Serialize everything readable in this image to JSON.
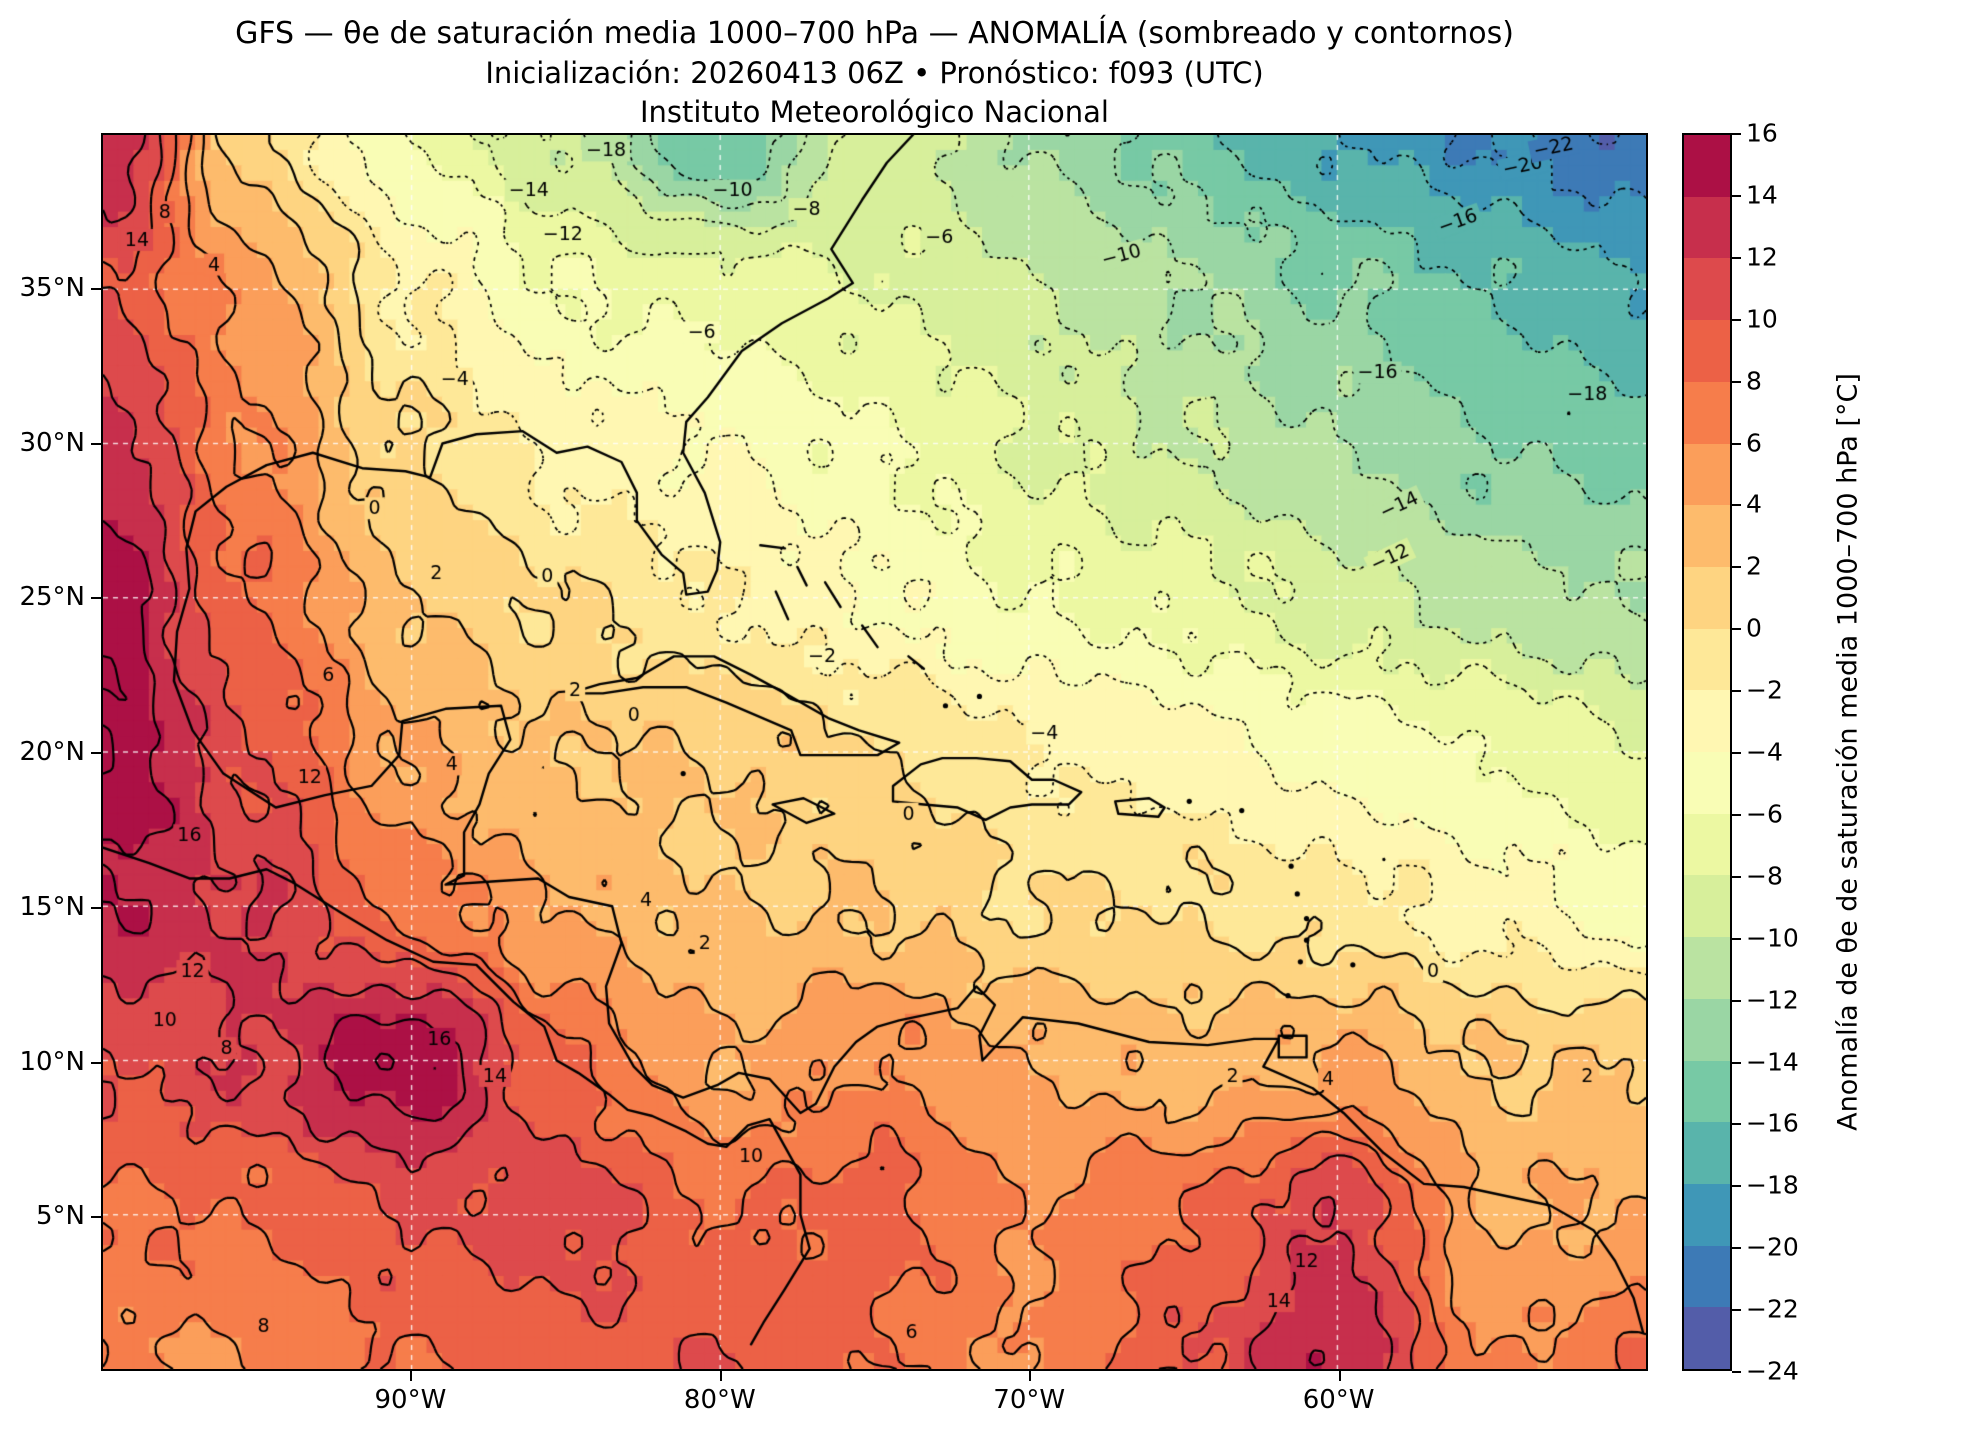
{
  "title": {
    "line1": "GFS — θe de saturación media 1000–700 hPa — ANOMALÍA (sombreado y contornos)",
    "line2": "Inicialización: 20260413 06Z   •   Pronóstico: f093 (UTC)",
    "line3": "Instituto Meteorológico Nacional"
  },
  "map": {
    "x_ticks": [
      {
        "label": "90°W",
        "lon": -90
      },
      {
        "label": "80°W",
        "lon": -80
      },
      {
        "label": "70°W",
        "lon": -70
      },
      {
        "label": "60°W",
        "lon": -60
      }
    ],
    "y_ticks": [
      {
        "label": "35°N",
        "lat": 35
      },
      {
        "label": "30°N",
        "lat": 30
      },
      {
        "label": "25°N",
        "lat": 25
      },
      {
        "label": "20°N",
        "lat": 20
      },
      {
        "label": "15°N",
        "lat": 15
      },
      {
        "label": "10°N",
        "lat": 10
      },
      {
        "label": "5°N",
        "lat": 5
      }
    ]
  },
  "colorbar": {
    "label": "Anomalía de θe de saturación media 1000–700 hPa [°C]",
    "vmin": -24,
    "vmax": 16,
    "tick_values": [
      16,
      14,
      12,
      10,
      8,
      6,
      4,
      2,
      0,
      -2,
      -4,
      -6,
      -8,
      -10,
      -12,
      -14,
      -16,
      -18,
      -20,
      -22,
      -24
    ],
    "tick_labels": [
      "16",
      "14",
      "12",
      "10",
      "8",
      "6",
      "4",
      "2",
      "0",
      "−2",
      "−4",
      "−6",
      "−8",
      "−10",
      "−12",
      "−14",
      "−16",
      "−18",
      "−20",
      "−22",
      "−24"
    ],
    "bin_colors_low_to_high": [
      "#535da9",
      "#3d7ab6",
      "#3f97b7",
      "#59b4ab",
      "#77c9a5",
      "#9ad6a4",
      "#bae3a1",
      "#d7ef9b",
      "#ecf8a2",
      "#f9fdb5",
      "#fff7b2",
      "#fee898",
      "#fed481",
      "#fdbb6c",
      "#fb9e5a",
      "#f67d4b",
      "#ec6146",
      "#dd4a4c",
      "#c72f4c",
      "#ac1045"
    ]
  },
  "chart_data": {
    "type": "heatmap",
    "title": "GFS — θe de saturación media 1000–700 hPa — ANOMALÍA (sombreado y contornos)",
    "units": "°C",
    "lon_range": [
      -100,
      -50
    ],
    "lat_range": [
      0,
      40
    ],
    "grid_lons": [
      -100,
      -95,
      -90,
      -85,
      -80,
      -75,
      -70,
      -65,
      -60,
      -55,
      -50
    ],
    "grid_lats": [
      40,
      35,
      30,
      25,
      20,
      15,
      10,
      5,
      0
    ],
    "values_by_lat_row": [
      [
        14,
        0,
        -6,
        -10,
        -16,
        -9,
        -12,
        -15,
        -18,
        -20,
        -22
      ],
      [
        10,
        5,
        -2,
        -6,
        -7,
        -8,
        -10,
        -12,
        -14,
        -16,
        -18
      ],
      [
        13,
        6,
        0,
        -3,
        -4,
        -6,
        -8,
        -10,
        -12,
        -14,
        -15
      ],
      [
        15,
        8,
        2,
        0,
        -2,
        -4,
        -6,
        -7,
        -9,
        -11,
        -12
      ],
      [
        16,
        10,
        4,
        2,
        2,
        0,
        -2,
        -3,
        -5,
        -6,
        -8
      ],
      [
        14,
        12,
        7,
        4,
        2,
        2,
        0,
        0,
        -1,
        -3,
        -5
      ],
      [
        10,
        12,
        16,
        8,
        4,
        6,
        4,
        3,
        4,
        2,
        2
      ],
      [
        8,
        8,
        10,
        11,
        8,
        9,
        6,
        8,
        12,
        4,
        4
      ],
      [
        6,
        6,
        8,
        9,
        10,
        8,
        6,
        10,
        14,
        6,
        8
      ]
    ],
    "contour_interval": 2,
    "contour_levels": [
      -22,
      -20,
      -18,
      -16,
      -14,
      -12,
      -10,
      -8,
      -6,
      -4,
      -2,
      0,
      2,
      4,
      6,
      8,
      10,
      12,
      14,
      16
    ],
    "negative_contour_style": "dotted",
    "positive_contour_style": "solid",
    "gridline_lons": [
      -90,
      -80,
      -70,
      -60
    ],
    "gridline_lats": [
      5,
      10,
      15,
      20,
      25,
      30,
      35
    ],
    "contour_labels": [
      {
        "v": -18,
        "lon": -83.7,
        "lat": 39.5
      },
      {
        "v": -14,
        "lon": -86.2,
        "lat": 38.2
      },
      {
        "v": -12,
        "lon": -85.1,
        "lat": 36.8
      },
      {
        "v": -10,
        "lon": -79.6,
        "lat": 38.2
      },
      {
        "v": -8,
        "lon": -77.2,
        "lat": 37.6
      },
      {
        "v": -6,
        "lon": -72.9,
        "lat": 36.7
      },
      {
        "v": -10,
        "lon": -67.0,
        "lat": 36.1,
        "r": -15
      },
      {
        "v": -16,
        "lon": -56.1,
        "lat": 37.2,
        "r": -20
      },
      {
        "v": -20,
        "lon": -54.0,
        "lat": 39.0,
        "r": -12
      },
      {
        "v": -22,
        "lon": -53.0,
        "lat": 39.6,
        "r": -12
      },
      {
        "v": -16,
        "lon": -58.7,
        "lat": 32.3
      },
      {
        "v": -18,
        "lon": -51.9,
        "lat": 31.6
      },
      {
        "v": -14,
        "lon": -58.0,
        "lat": 28.0,
        "r": -25
      },
      {
        "v": -12,
        "lon": -58.3,
        "lat": 26.3,
        "r": -25
      },
      {
        "v": -6,
        "lon": -80.6,
        "lat": 33.6
      },
      {
        "v": -4,
        "lon": -88.6,
        "lat": 32.1
      },
      {
        "v": 0,
        "lon": -91.2,
        "lat": 27.9
      },
      {
        "v": 0,
        "lon": -85.6,
        "lat": 25.7
      },
      {
        "v": -2,
        "lon": -76.7,
        "lat": 23.1
      },
      {
        "v": -4,
        "lon": -69.5,
        "lat": 20.6
      },
      {
        "v": 2,
        "lon": -89.2,
        "lat": 25.8
      },
      {
        "v": 2,
        "lon": -84.7,
        "lat": 22.0
      },
      {
        "v": 0,
        "lon": -82.8,
        "lat": 21.2
      },
      {
        "v": 6,
        "lon": -92.7,
        "lat": 22.5
      },
      {
        "v": 4,
        "lon": -88.7,
        "lat": 19.6
      },
      {
        "v": 12,
        "lon": -93.3,
        "lat": 19.2
      },
      {
        "v": 16,
        "lon": -97.2,
        "lat": 17.3
      },
      {
        "v": 0,
        "lon": -73.9,
        "lat": 18.0
      },
      {
        "v": 4,
        "lon": -82.4,
        "lat": 15.2
      },
      {
        "v": 2,
        "lon": -80.5,
        "lat": 13.8
      },
      {
        "v": 12,
        "lon": -97.1,
        "lat": 12.9
      },
      {
        "v": 10,
        "lon": -98.0,
        "lat": 11.3
      },
      {
        "v": 8,
        "lon": -96.0,
        "lat": 10.4
      },
      {
        "v": 16,
        "lon": -89.1,
        "lat": 10.7
      },
      {
        "v": 14,
        "lon": -87.3,
        "lat": 9.5
      },
      {
        "v": 10,
        "lon": -79.0,
        "lat": 6.9
      },
      {
        "v": 0,
        "lon": -56.9,
        "lat": 12.9
      },
      {
        "v": 2,
        "lon": -51.9,
        "lat": 9.5
      },
      {
        "v": 4,
        "lon": -60.3,
        "lat": 9.4
      },
      {
        "v": 2,
        "lon": -63.4,
        "lat": 9.5
      },
      {
        "v": 12,
        "lon": -61.0,
        "lat": 3.5
      },
      {
        "v": 14,
        "lon": -61.9,
        "lat": 2.2
      },
      {
        "v": 6,
        "lon": -73.8,
        "lat": 1.2
      },
      {
        "v": 8,
        "lon": -94.8,
        "lat": 1.4
      },
      {
        "v": 8,
        "lon": -98.0,
        "lat": 37.5
      },
      {
        "v": 14,
        "lon": -98.9,
        "lat": 36.6
      },
      {
        "v": 4,
        "lon": -96.4,
        "lat": 35.8
      }
    ]
  },
  "coastlines": {
    "polylines": [
      [
        [
          -97.7,
          22.3
        ],
        [
          -97.6,
          23.9
        ],
        [
          -97.2,
          25.3
        ],
        [
          -97.3,
          26.6
        ],
        [
          -97.0,
          27.8
        ],
        [
          -96.0,
          28.6
        ],
        [
          -94.7,
          29.3
        ],
        [
          -93.2,
          29.7
        ],
        [
          -91.6,
          29.2
        ],
        [
          -90.2,
          29.1
        ],
        [
          -89.4,
          28.9
        ],
        [
          -89.0,
          30.0
        ],
        [
          -87.9,
          30.3
        ],
        [
          -86.4,
          30.4
        ],
        [
          -85.3,
          29.7
        ],
        [
          -84.3,
          29.9
        ],
        [
          -83.2,
          29.4
        ],
        [
          -82.7,
          28.4
        ],
        [
          -82.7,
          27.5
        ],
        [
          -81.9,
          26.4
        ],
        [
          -81.2,
          25.8
        ],
        [
          -81.1,
          25.1
        ],
        [
          -80.4,
          25.2
        ],
        [
          -80.1,
          25.9
        ],
        [
          -80.0,
          26.8
        ],
        [
          -80.5,
          28.4
        ],
        [
          -81.2,
          29.7
        ],
        [
          -81.1,
          30.7
        ],
        [
          -80.4,
          31.5
        ],
        [
          -79.3,
          33.0
        ],
        [
          -78.0,
          33.9
        ],
        [
          -76.5,
          34.7
        ],
        [
          -75.7,
          35.2
        ],
        [
          -76.4,
          36.3
        ],
        [
          -75.4,
          37.9
        ],
        [
          -74.6,
          39.1
        ],
        [
          -73.2,
          40.6
        ]
      ],
      [
        [
          -97.7,
          22.3
        ],
        [
          -97.1,
          20.7
        ],
        [
          -96.1,
          19.3
        ],
        [
          -94.4,
          18.2
        ],
        [
          -92.8,
          18.6
        ],
        [
          -91.3,
          18.9
        ],
        [
          -90.4,
          19.9
        ],
        [
          -90.3,
          21.0
        ],
        [
          -88.9,
          21.4
        ],
        [
          -87.1,
          21.5
        ],
        [
          -86.8,
          20.4
        ],
        [
          -87.5,
          19.3
        ],
        [
          -87.8,
          18.3
        ],
        [
          -88.3,
          17.4
        ],
        [
          -88.3,
          16.0
        ],
        [
          -88.9,
          15.7
        ],
        [
          -87.4,
          15.8
        ],
        [
          -85.9,
          15.9
        ],
        [
          -84.9,
          15.3
        ],
        [
          -83.5,
          15.0
        ],
        [
          -83.2,
          13.8
        ],
        [
          -83.7,
          12.4
        ],
        [
          -83.6,
          11.2
        ],
        [
          -82.8,
          9.8
        ],
        [
          -82.2,
          9.2
        ],
        [
          -81.2,
          8.8
        ],
        [
          -80.1,
          9.2
        ],
        [
          -79.4,
          9.6
        ],
        [
          -78.4,
          9.4
        ],
        [
          -77.4,
          8.3
        ],
        [
          -76.9,
          8.6
        ],
        [
          -76.3,
          9.8
        ],
        [
          -75.6,
          10.6
        ],
        [
          -74.9,
          11.1
        ],
        [
          -74.2,
          11.3
        ],
        [
          -72.3,
          11.7
        ],
        [
          -71.7,
          12.4
        ],
        [
          -71.1,
          11.8
        ],
        [
          -71.6,
          10.8
        ],
        [
          -71.5,
          10.0
        ],
        [
          -70.2,
          11.4
        ],
        [
          -68.4,
          11.2
        ],
        [
          -66.1,
          10.6
        ],
        [
          -64.2,
          10.5
        ],
        [
          -62.7,
          10.7
        ],
        [
          -61.9,
          10.7
        ],
        [
          -62.4,
          9.8
        ],
        [
          -60.8,
          9.1
        ],
        [
          -59.8,
          8.3
        ],
        [
          -58.5,
          7.0
        ],
        [
          -57.2,
          6.0
        ],
        [
          -55.9,
          5.9
        ],
        [
          -54.5,
          5.6
        ],
        [
          -53.1,
          5.3
        ],
        [
          -51.7,
          4.5
        ],
        [
          -51.0,
          3.5
        ],
        [
          -50.4,
          2.3
        ],
        [
          -50.1,
          1.2
        ]
      ],
      [
        [
          -100.0,
          16.9
        ],
        [
          -98.5,
          16.4
        ],
        [
          -97.2,
          15.9
        ],
        [
          -95.9,
          15.9
        ],
        [
          -94.7,
          16.2
        ],
        [
          -93.9,
          15.8
        ],
        [
          -92.3,
          14.8
        ],
        [
          -90.8,
          13.9
        ],
        [
          -89.3,
          13.2
        ],
        [
          -87.9,
          13.1
        ],
        [
          -87.4,
          12.6
        ],
        [
          -86.7,
          11.9
        ],
        [
          -85.7,
          11.1
        ],
        [
          -85.3,
          10.0
        ],
        [
          -84.6,
          9.6
        ],
        [
          -83.6,
          8.9
        ],
        [
          -83.0,
          8.4
        ],
        [
          -82.2,
          8.2
        ],
        [
          -81.1,
          7.7
        ],
        [
          -80.4,
          7.3
        ],
        [
          -79.8,
          7.2
        ],
        [
          -79.1,
          7.9
        ],
        [
          -78.4,
          8.1
        ],
        [
          -77.9,
          7.2
        ],
        [
          -77.4,
          6.3
        ],
        [
          -77.4,
          5.0
        ],
        [
          -77.1,
          3.9
        ],
        [
          -77.9,
          2.6
        ],
        [
          -78.6,
          1.5
        ],
        [
          -79.0,
          0.8
        ]
      ],
      [
        [
          -84.9,
          21.9
        ],
        [
          -83.9,
          22.2
        ],
        [
          -82.7,
          22.4
        ],
        [
          -81.5,
          23.1
        ],
        [
          -80.2,
          23.1
        ],
        [
          -79.0,
          22.5
        ],
        [
          -77.9,
          21.9
        ],
        [
          -76.5,
          21.1
        ],
        [
          -75.5,
          20.7
        ],
        [
          -74.2,
          20.3
        ],
        [
          -74.9,
          19.9
        ],
        [
          -76.2,
          19.9
        ],
        [
          -77.4,
          19.9
        ],
        [
          -77.7,
          20.7
        ],
        [
          -79.8,
          21.6
        ],
        [
          -81.1,
          22.1
        ],
        [
          -82.5,
          22.1
        ],
        [
          -83.8,
          21.9
        ],
        [
          -84.9,
          21.9
        ]
      ],
      [
        [
          -74.4,
          18.4
        ],
        [
          -73.4,
          18.3
        ],
        [
          -72.3,
          18.2
        ],
        [
          -71.4,
          17.8
        ],
        [
          -70.6,
          18.2
        ],
        [
          -69.9,
          18.3
        ],
        [
          -68.7,
          18.3
        ],
        [
          -68.3,
          18.7
        ],
        [
          -69.2,
          19.1
        ],
        [
          -69.9,
          19.1
        ],
        [
          -70.6,
          19.7
        ],
        [
          -71.7,
          19.8
        ],
        [
          -72.8,
          19.8
        ],
        [
          -73.5,
          19.6
        ],
        [
          -74.4,
          18.9
        ],
        [
          -74.4,
          18.4
        ]
      ],
      [
        [
          -78.3,
          18.3
        ],
        [
          -77.3,
          18.5
        ],
        [
          -76.3,
          18.0
        ],
        [
          -77.2,
          17.7
        ],
        [
          -78.3,
          18.3
        ]
      ],
      [
        [
          -67.2,
          18.4
        ],
        [
          -66.1,
          18.5
        ],
        [
          -65.6,
          18.2
        ],
        [
          -65.8,
          17.9
        ],
        [
          -67.1,
          18.0
        ],
        [
          -67.2,
          18.4
        ]
      ],
      [
        [
          -61.9,
          10.8
        ],
        [
          -61.0,
          10.8
        ],
        [
          -61.0,
          10.1
        ],
        [
          -61.9,
          10.1
        ],
        [
          -61.9,
          10.8
        ]
      ],
      [
        [
          -78.7,
          26.7
        ],
        [
          -77.9,
          26.6
        ]
      ],
      [
        [
          -77.5,
          26.0
        ],
        [
          -77.2,
          25.4
        ]
      ],
      [
        [
          -78.2,
          25.2
        ],
        [
          -77.8,
          24.3
        ]
      ],
      [
        [
          -76.6,
          25.5
        ],
        [
          -76.1,
          24.7
        ]
      ],
      [
        [
          -75.4,
          24.1
        ],
        [
          -74.9,
          23.4
        ]
      ],
      [
        [
          -73.9,
          23.1
        ],
        [
          -73.4,
          22.7
        ]
      ]
    ],
    "island_points": [
      [
        -64.8,
        18.4
      ],
      [
        -63.1,
        18.1
      ],
      [
        -61.5,
        16.3
      ],
      [
        -61.3,
        15.4
      ],
      [
        -61.0,
        14.6
      ],
      [
        -61.0,
        13.9
      ],
      [
        -61.2,
        13.2
      ],
      [
        -61.6,
        12.1
      ],
      [
        -59.5,
        13.1
      ],
      [
        -81.2,
        19.3
      ],
      [
        -71.6,
        21.8
      ],
      [
        -72.7,
        21.5
      ]
    ]
  }
}
